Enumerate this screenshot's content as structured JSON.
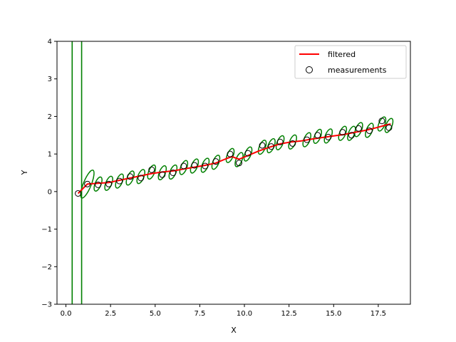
{
  "chart_data": {
    "type": "line",
    "title": "",
    "xlabel": "X",
    "ylabel": "Y",
    "xlim": [
      -0.5,
      19.3
    ],
    "ylim": [
      -3,
      4
    ],
    "xticks": [
      0.0,
      2.5,
      5.0,
      7.5,
      10.0,
      12.5,
      15.0,
      17.5
    ],
    "xtick_labels": [
      "0.0",
      "2.5",
      "5.0",
      "7.5",
      "10.0",
      "12.5",
      "15.0",
      "17.5"
    ],
    "yticks": [
      -3,
      -2,
      -1,
      0,
      1,
      2,
      3,
      4
    ],
    "ytick_labels": [
      "−3",
      "−2",
      "−1",
      "0",
      "1",
      "2",
      "3",
      "4"
    ],
    "grid": false,
    "legend": {
      "placement": "top-right",
      "entries": [
        {
          "label": "filtered",
          "style": "line",
          "color": "#ff0000"
        },
        {
          "label": "measurements",
          "style": "hollow-circle",
          "color": "#000000"
        }
      ]
    },
    "series": [
      {
        "name": "filtered",
        "style": "line",
        "color": "#ff0000",
        "x": [
          0.68,
          1.2,
          1.8,
          2.4,
          3.0,
          3.6,
          4.2,
          4.8,
          5.4,
          6.0,
          6.6,
          7.2,
          7.8,
          8.4,
          9.0,
          9.3,
          9.7,
          10.2,
          10.8,
          11.4,
          12.0,
          12.6,
          13.2,
          13.8,
          14.4,
          15.0,
          15.6,
          16.2,
          16.8,
          17.4,
          18.0,
          18.2
        ],
        "y": [
          -0.05,
          0.2,
          0.22,
          0.24,
          0.3,
          0.36,
          0.42,
          0.48,
          0.52,
          0.55,
          0.6,
          0.65,
          0.7,
          0.76,
          0.88,
          0.93,
          0.86,
          0.96,
          1.08,
          1.18,
          1.27,
          1.32,
          1.35,
          1.4,
          1.44,
          1.48,
          1.52,
          1.58,
          1.63,
          1.7,
          1.78,
          1.8
        ]
      },
      {
        "name": "measurements",
        "style": "hollow-circle",
        "color": "#000000",
        "x": [
          0.68,
          1.2,
          1.8,
          2.4,
          3.0,
          3.6,
          4.2,
          4.8,
          5.4,
          6.0,
          6.6,
          7.2,
          7.8,
          8.4,
          9.2,
          9.7,
          10.2,
          11.0,
          11.5,
          12.0,
          12.7,
          13.5,
          14.1,
          14.7,
          15.5,
          16.0,
          16.4,
          17.0,
          17.7,
          18.1
        ],
        "y": [
          -0.05,
          0.2,
          0.18,
          0.2,
          0.28,
          0.4,
          0.36,
          0.58,
          0.45,
          0.5,
          0.68,
          0.7,
          0.68,
          0.8,
          1.0,
          0.76,
          1.02,
          1.23,
          1.2,
          1.32,
          1.28,
          1.38,
          1.5,
          1.45,
          1.58,
          1.5,
          1.68,
          1.62,
          1.88,
          1.7
        ]
      }
    ],
    "covariance_ellipses": {
      "color": "#008000",
      "x": [
        1.2,
        1.8,
        2.4,
        3.0,
        3.6,
        4.2,
        4.8,
        5.4,
        6.0,
        6.6,
        7.2,
        7.8,
        8.4,
        9.2,
        9.7,
        10.2,
        11.0,
        11.5,
        12.0,
        12.7,
        13.5,
        14.1,
        14.7,
        15.5,
        16.0,
        16.4,
        17.0,
        17.7,
        18.1
      ],
      "y": [
        0.2,
        0.2,
        0.22,
        0.28,
        0.36,
        0.4,
        0.52,
        0.5,
        0.52,
        0.64,
        0.68,
        0.7,
        0.78,
        0.96,
        0.85,
        1.0,
        1.18,
        1.22,
        1.3,
        1.32,
        1.38,
        1.47,
        1.48,
        1.55,
        1.55,
        1.65,
        1.63,
        1.8,
        1.76
      ]
    },
    "initial_covariance_lines": {
      "color": "#008000",
      "x": [
        0.35,
        0.88
      ]
    }
  }
}
